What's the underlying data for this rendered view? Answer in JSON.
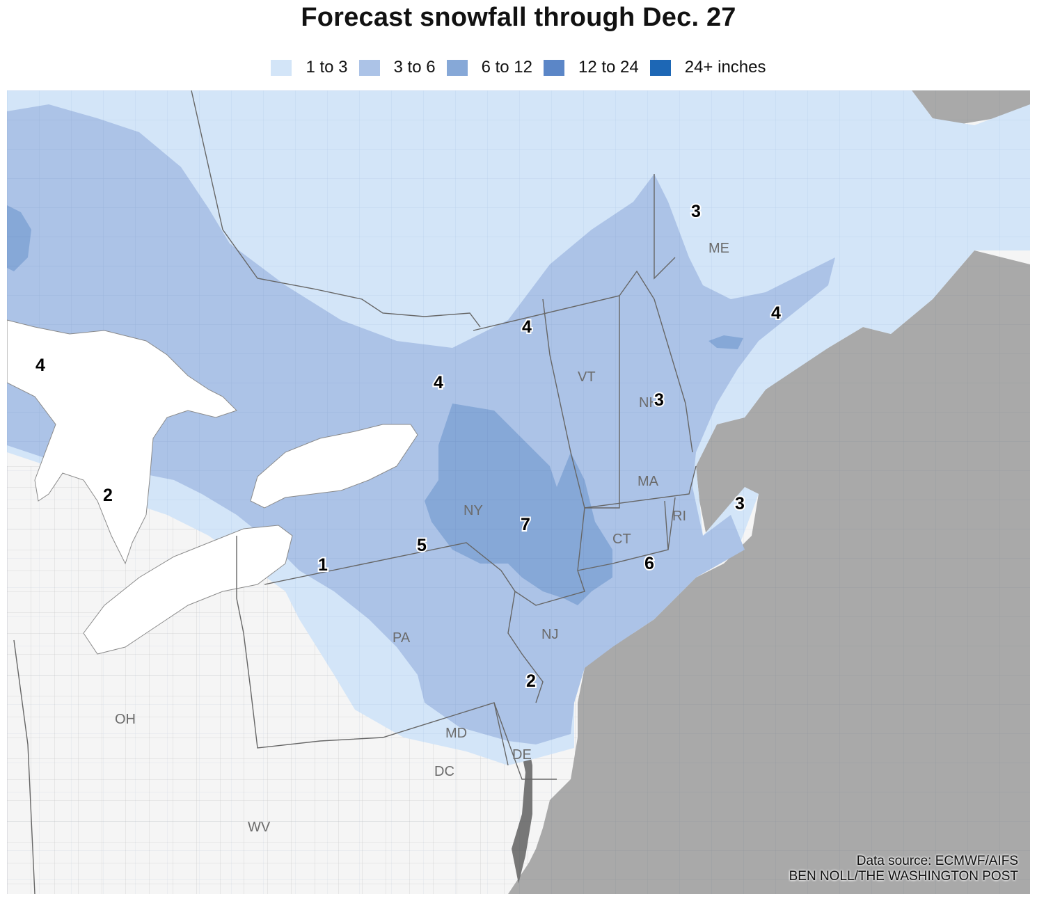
{
  "title": "Forecast snowfall through Dec. 27",
  "legend": [
    {
      "label": "1 to 3",
      "color": "#d3e5f8"
    },
    {
      "label": "3 to 6",
      "color": "#acc3e7"
    },
    {
      "label": "6 to 12",
      "color": "#86a8d7"
    },
    {
      "label": "12 to 24",
      "color": "#5b86c7"
    },
    {
      "label": "24+ inches",
      "color": "#1d67b5"
    }
  ],
  "colors": {
    "ocean": "#a9a9a9",
    "land": "#f5f5f5",
    "lakes": "#ffffff",
    "state_border": "#666666",
    "county_border": "#cfcfcf"
  },
  "state_labels": {
    "me": "ME",
    "vt": "VT",
    "nh": "NH",
    "ma": "MA",
    "ny": "NY",
    "ri": "RI",
    "ct": "CT",
    "pa": "PA",
    "nj": "NJ",
    "oh": "OH",
    "md": "MD",
    "de": "DE",
    "dc": "DC",
    "wv": "WV"
  },
  "point_values": {
    "maine_north": "3",
    "maine_coast": "4",
    "ontario_north": "4",
    "lake_ontario_ne": "4",
    "michigan": "4",
    "nh": "3",
    "cape_cod": "3",
    "detroit": "2",
    "erie": "1",
    "ny_southern_tier": "5",
    "catskills": "7",
    "long_island": "6",
    "philadelphia": "2"
  },
  "credit": {
    "source": "Data source: ECMWF/AIFS",
    "byline": "BEN NOLL/THE WASHINGTON POST"
  }
}
